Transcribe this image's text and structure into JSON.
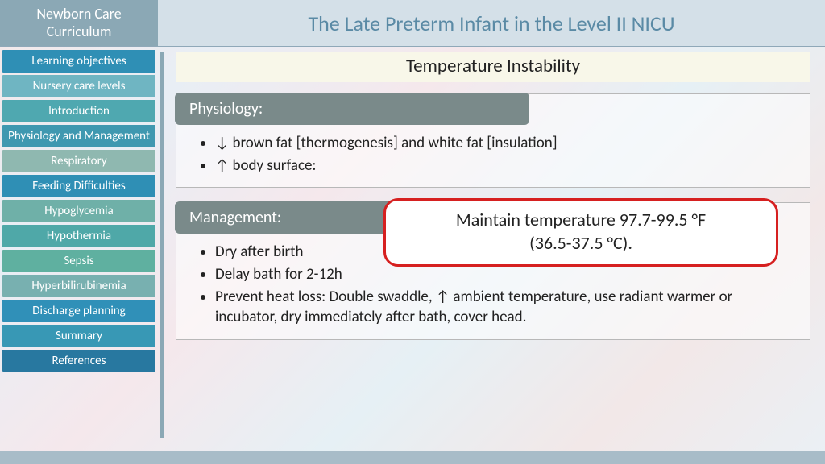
{
  "header": {
    "left_line1": "Newborn Care",
    "left_line2": "Curriculum",
    "title": "The Late Preterm Infant in the Level II NICU"
  },
  "sidebar": {
    "items": [
      {
        "label": "Learning objectives",
        "color": "#2f8fb5"
      },
      {
        "label": "Nursery care levels",
        "color": "#6fb5c2"
      },
      {
        "label": "Introduction",
        "color": "#4fa8b0"
      },
      {
        "label": "Physiology and Management",
        "color": "#3f98b0"
      },
      {
        "label": "Respiratory",
        "color": "#8fb8b0"
      },
      {
        "label": "Feeding Difficulties",
        "color": "#2f8fb5"
      },
      {
        "label": "Hypoglycemia",
        "color": "#6fb0a8"
      },
      {
        "label": "Hypothermia",
        "color": "#4fa8a8"
      },
      {
        "label": "Sepsis",
        "color": "#5fb0a0"
      },
      {
        "label": "Hyperbilirubinemia",
        "color": "#78b0b0"
      },
      {
        "label": "Discharge planning",
        "color": "#3090b8"
      },
      {
        "label": "Summary",
        "color": "#3898b5"
      },
      {
        "label": "References",
        "color": "#2878a0"
      }
    ]
  },
  "content": {
    "section_title": "Temperature Instability",
    "blocks": [
      {
        "header": "Physiology:",
        "bullets": [
          "↓ brown fat [thermogenesis] and white fat [insulation]",
          "↑ body surface:"
        ]
      },
      {
        "header": "Management:",
        "bullets": [
          "Dry after birth",
          "Delay bath for 2-12h",
          "Prevent heat loss:  Double swaddle, ↑ ambient temperature, use radiant warmer or incubator, dry immediately after bath, cover head."
        ]
      }
    ],
    "callout_line1": "Maintain temperature 97.7-99.5 °F",
    "callout_line2": "(36.5-37.5 °C)."
  },
  "colors": {
    "header_left_bg": "#8ba8b5",
    "header_right_bg": "#d4e0e8",
    "header_title_color": "#5a8aa5",
    "block_header_bg": "#7a8a8a",
    "callout_border": "#d62020",
    "footer_bg": "#a8bcc8"
  }
}
